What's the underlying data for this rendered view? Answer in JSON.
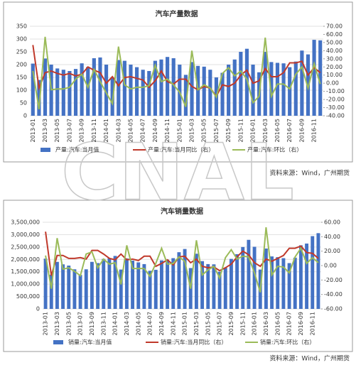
{
  "chart_data": [
    {
      "type": "bar-line",
      "title": "汽车产量数据",
      "source": "资料来源：Wind，广州期货",
      "categories": [
        "2013-01",
        null,
        "2013-03",
        null,
        "2013-05",
        null,
        "2013-07",
        null,
        "2013-09",
        null,
        "2013-11",
        null,
        "2014-01",
        null,
        "2014-03",
        null,
        "2014-05",
        null,
        "2014-07",
        null,
        "2014-09",
        null,
        "2014-11",
        null,
        "2015-01",
        null,
        "2015-03",
        null,
        "2015-05",
        null,
        "2015-07",
        null,
        "2015-09",
        null,
        "2015-11",
        null,
        "2016-01",
        null,
        "2016-03",
        null,
        "2016-05",
        null,
        "2016-07",
        null,
        "2016-09",
        null,
        "2016-11",
        null
      ],
      "series": [
        {
          "name": "产量:汽车:当月值",
          "color": "#4472c4",
          "axis": "y",
          "values": [
            204,
            140,
            224,
            200,
            185,
            180,
            175,
            183,
            205,
            191,
            225,
            228,
            200,
            150,
            218,
            215,
            200,
            190,
            180,
            175,
            215,
            220,
            230,
            225,
            200,
            160,
            210,
            195,
            192,
            180,
            150,
            168,
            200,
            220,
            250,
            262,
            200,
            170,
            250,
            210,
            207,
            205,
            190,
            212,
            255,
            240,
            297,
            295
          ]
        },
        {
          "name": "产量:汽车:当月同比（右）",
          "color": "#c0392b",
          "axis": "y2",
          "values": [
            47,
            -6,
            13,
            15,
            12,
            10,
            12,
            9,
            11,
            20,
            16,
            13,
            0,
            8,
            -3,
            7,
            8,
            6,
            4,
            -5,
            3,
            15,
            2,
            -1,
            5,
            5,
            -4,
            -8,
            -4,
            -6,
            -16,
            -2,
            -4,
            0,
            10,
            16,
            0,
            3,
            18,
            8,
            8,
            13,
            25,
            25,
            27,
            10,
            19,
            13
          ]
        },
        {
          "name": "产量:汽车:环比（右）",
          "color": "#9bbb59",
          "axis": "y2",
          "values": [
            15,
            -32,
            57,
            -8,
            -7,
            -7,
            -5,
            5,
            11,
            -5,
            17,
            2,
            -12,
            -25,
            45,
            -2,
            -7,
            -5,
            -5,
            -3,
            22,
            2,
            5,
            -2,
            -11,
            -29,
            40,
            -8,
            -2,
            -6,
            -17,
            12,
            19,
            9,
            15,
            5,
            -24,
            -16,
            56,
            -16,
            -1,
            -1,
            -7,
            11,
            20,
            -6,
            24,
            -1
          ]
        }
      ],
      "ylim": [
        0,
        350
      ],
      "yticks": [
        0,
        50,
        100,
        150,
        200,
        250,
        300,
        350
      ],
      "y2lim": [
        -40,
        70
      ],
      "y2ticks": [
        {
          "value": -40,
          "label": "-40.00"
        },
        {
          "value": -30,
          "label": "-30.00"
        },
        {
          "value": -20,
          "label": "-20.00"
        },
        {
          "value": -10,
          "label": "-10.00"
        },
        {
          "value": 0,
          "label": "0.00"
        },
        {
          "value": 10,
          "label": "10.00"
        },
        {
          "value": 20,
          "label": "20.00"
        },
        {
          "value": 30,
          "label": "30.00"
        },
        {
          "value": 40,
          "label": "40.00"
        },
        {
          "value": 50,
          "label": "50.00"
        },
        {
          "value": 60,
          "label": "60.00"
        },
        {
          "value": 70,
          "label": "70.00"
        }
      ]
    },
    {
      "type": "bar-line",
      "title": "汽车销量数据",
      "source": "资料来源：Wind，广州期货",
      "categories": [
        "2013-01",
        null,
        "2013-03",
        null,
        "2013-05",
        null,
        "2013-07",
        null,
        "2013-09",
        null,
        "2013-11",
        null,
        "2014-01",
        null,
        "2014-03",
        null,
        "2014-05",
        null,
        "2014-07",
        null,
        "2014-09",
        null,
        "2014-11",
        null,
        "2015-01",
        null,
        "2015-03",
        null,
        "2015-05",
        null,
        "2015-07",
        null,
        "2015-09",
        null,
        "2015-11",
        null,
        "2016-01",
        null,
        "2016-03",
        null,
        "2016-05",
        null,
        "2016-07",
        null,
        "2016-09",
        null,
        "2016-11",
        null
      ],
      "series": [
        {
          "name": "销量:汽车:当月值",
          "color": "#4472c4",
          "axis": "y",
          "values": [
            2030000,
            1380000,
            1900000,
            1800000,
            1750000,
            1600000,
            1370000,
            1600000,
            1900000,
            1850000,
            2020000,
            2050000,
            2140000,
            1590000,
            2040000,
            1950000,
            1880000,
            1810000,
            1540000,
            1580000,
            1960000,
            1990000,
            2050000,
            2290000,
            2420000,
            1650000,
            2230000,
            1930000,
            1810000,
            1800000,
            1500000,
            1660000,
            2020000,
            2210000,
            2500000,
            2790000,
            2510000,
            1590000,
            2440000,
            2120000,
            2090000,
            2050000,
            1850000,
            2070000,
            2570000,
            2640000,
            2940000,
            3060000
          ]
        },
        {
          "name": "销量:汽车:当月同比（右）",
          "color": "#c0392b",
          "axis": "y2",
          "values": [
            47,
            -14,
            14,
            14,
            10,
            10,
            11,
            9,
            21,
            21,
            16,
            10,
            8,
            16,
            8,
            9,
            7,
            13,
            13,
            -1,
            3,
            8,
            1,
            12,
            13,
            4,
            9,
            -1,
            -3,
            -2,
            -7,
            -3,
            2,
            12,
            20,
            15,
            4,
            -1,
            9,
            6,
            10,
            14,
            24,
            24,
            27,
            18,
            17,
            10
          ]
        },
        {
          "name": "销量:汽车:环比（右）",
          "color": "#9bbb59",
          "axis": "y2",
          "values": [
            14,
            -32,
            38,
            -5,
            -3,
            -8,
            -14,
            16,
            19,
            -3,
            9,
            2,
            4,
            -26,
            28,
            -4,
            -4,
            -4,
            -15,
            3,
            24,
            2,
            3,
            12,
            6,
            -32,
            35,
            -13,
            -6,
            -1,
            -17,
            11,
            22,
            9,
            13,
            12,
            -10,
            -37,
            53,
            -13,
            -1,
            -2,
            -10,
            12,
            24,
            3,
            11,
            4
          ]
        }
      ],
      "ylim": [
        0,
        3500000
      ],
      "yticks": [
        0,
        {
          "value": 500000,
          "label": "500,000"
        },
        {
          "value": 1000000,
          "label": "1,000,000"
        },
        {
          "value": 1500000,
          "label": "1,500,000"
        },
        {
          "value": 2000000,
          "label": "2,000,000"
        },
        {
          "value": 2500000,
          "label": "2,500,000"
        },
        {
          "value": 3000000,
          "label": "3,000,000"
        },
        {
          "value": 3500000,
          "label": "3,500,000"
        }
      ],
      "y2lim": [
        -60,
        60
      ],
      "y2ticks": [
        {
          "value": -60,
          "label": "-60.00"
        },
        {
          "value": -40,
          "label": "-40.00"
        },
        {
          "value": -20,
          "label": "-20.00"
        },
        {
          "value": 0,
          "label": "0.00"
        },
        {
          "value": 20,
          "label": "20.00"
        },
        {
          "value": 40,
          "label": "40.00"
        },
        {
          "value": 60,
          "label": "60.00"
        }
      ]
    }
  ],
  "watermark": "CNAL"
}
